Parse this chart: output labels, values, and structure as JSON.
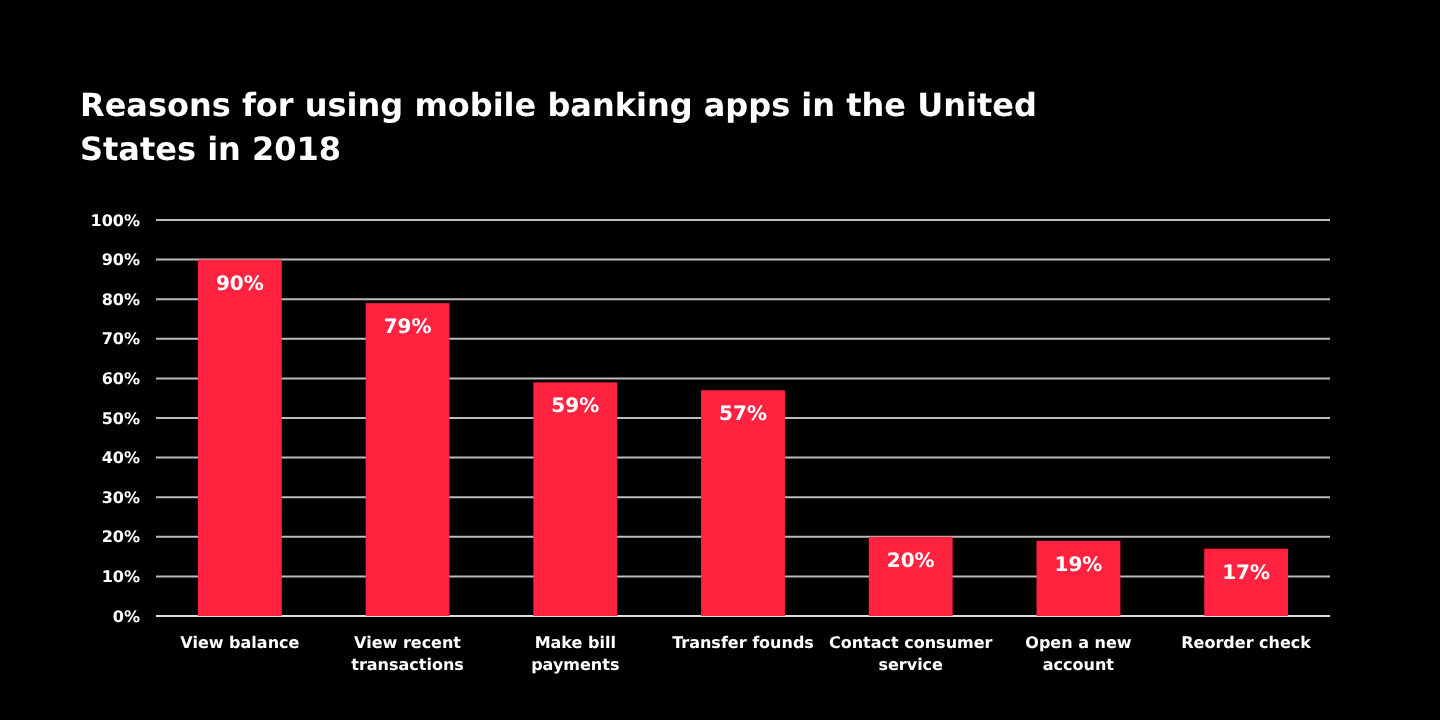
{
  "chart_data": {
    "type": "bar",
    "title": "Reasons for using mobile banking apps in the United States in 2018",
    "categories": [
      "View balance",
      "View recent transactions",
      "Make bill payments",
      "Transfer founds",
      "Contact consumer service",
      "Open a new account",
      "Reorder check"
    ],
    "values": [
      90,
      79,
      59,
      57,
      20,
      19,
      17
    ],
    "value_labels": [
      "90%",
      "79%",
      "59%",
      "57%",
      "20%",
      "19%",
      "17%"
    ],
    "color": "#ff2340",
    "ylim": [
      0,
      100
    ],
    "yticks": [
      {
        "value": 0,
        "label": "0%"
      },
      {
        "value": 10,
        "label": "10%"
      },
      {
        "value": 20,
        "label": "20%"
      },
      {
        "value": 30,
        "label": "30%"
      },
      {
        "value": 40,
        "label": "40%"
      },
      {
        "value": 50,
        "label": "50%"
      },
      {
        "value": 60,
        "label": "60%"
      },
      {
        "value": 70,
        "label": "70%"
      },
      {
        "value": 80,
        "label": "80%"
      },
      {
        "value": 90,
        "label": "90%"
      },
      {
        "value": 100,
        "label": "100%"
      }
    ],
    "grid": "y"
  }
}
